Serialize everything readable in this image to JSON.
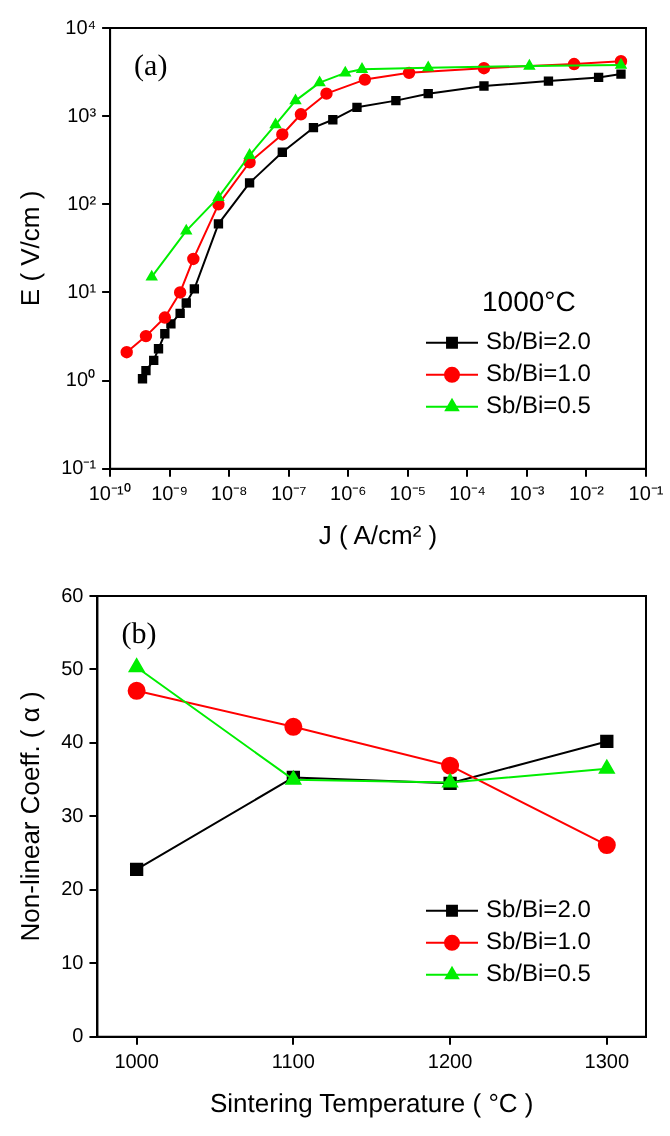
{
  "chart_data": [
    {
      "type": "line",
      "annotations": [
        "(a)"
      ],
      "xlabel": "J ( A/cm² )",
      "ylabel": "E ( V/cm )",
      "legend_title": "1000°C",
      "legend": "bottom right",
      "log": "xy",
      "grid": false,
      "xlim": [
        1e-10,
        0.1
      ],
      "xticks": [
        {
          "value": 1e-10,
          "label": "10⁻¹⁰"
        },
        {
          "value": 1e-09,
          "label": "10⁻⁹"
        },
        {
          "value": 1e-08,
          "label": "10⁻⁸"
        },
        {
          "value": 1e-07,
          "label": "10⁻⁷"
        },
        {
          "value": 1e-06,
          "label": "10⁻⁶"
        },
        {
          "value": 1e-05,
          "label": "10⁻⁵"
        },
        {
          "value": 0.0001,
          "label": "10⁻⁴"
        },
        {
          "value": 0.001,
          "label": "10⁻³"
        },
        {
          "value": 0.01,
          "label": "10⁻²"
        },
        {
          "value": 0.1,
          "label": "10⁻¹"
        }
      ],
      "ylim": [
        0.1,
        10000
      ],
      "yticks": [
        {
          "value": 0.1,
          "label": "10⁻¹"
        },
        {
          "value": 1,
          "label": "10⁰"
        },
        {
          "value": 10,
          "label": "10¹"
        },
        {
          "value": 100,
          "label": "10²"
        },
        {
          "value": 1000,
          "label": "10³"
        },
        {
          "value": 10000,
          "label": "10⁴"
        }
      ],
      "series": [
        {
          "name": "Sb/Bi=2.0",
          "color": "#000000",
          "marker": "square",
          "x": [
            3.5e-10,
            4e-10,
            5.4e-10,
            6.5e-10,
            8.3e-10,
            1.05e-09,
            1.5e-09,
            1.9e-09,
            2.6e-09,
            6.6e-09,
            2.2e-08,
            7.8e-08,
            2.6e-07,
            5.5e-07,
            1.4e-06,
            6.3e-06,
            2.2e-05,
            0.00019,
            0.0023,
            0.016,
            0.038
          ],
          "values": [
            1.05,
            1.3,
            1.7,
            2.3,
            3.4,
            4.4,
            5.8,
            7.6,
            11,
            60,
            175,
            390,
            740,
            910,
            1260,
            1500,
            1800,
            2200,
            2500,
            2750,
            3000
          ]
        },
        {
          "name": "Sb/Bi=1.0",
          "color": "#ff0000",
          "marker": "circle",
          "x": [
            1.9e-10,
            4e-10,
            8.3e-10,
            1.5e-09,
            2.5e-09,
            6.6e-09,
            2.2e-08,
            7.8e-08,
            1.6e-07,
            4.3e-07,
            1.9e-06,
            1.05e-05,
            0.00019,
            0.0062,
            0.038
          ],
          "values": [
            2.1,
            3.2,
            5.2,
            10,
            24,
            100,
            300,
            620,
            1050,
            1800,
            2600,
            3100,
            3500,
            3900,
            4200
          ]
        },
        {
          "name": "Sb/Bi=0.5",
          "color": "#00ee00",
          "marker": "triangle",
          "x": [
            5e-10,
            1.9e-09,
            6.6e-09,
            2.2e-08,
            6e-08,
            1.3e-07,
            3.3e-07,
            8.9e-07,
            1.7e-06,
            2.2e-05,
            0.0011,
            0.038
          ],
          "values": [
            15,
            50,
            120,
            360,
            800,
            1500,
            2400,
            3100,
            3400,
            3550,
            3700,
            3800
          ]
        }
      ]
    },
    {
      "type": "line",
      "annotations": [
        "(b)"
      ],
      "xlabel": "Sintering Temperature ( °C )",
      "ylabel": "Non-linear Coeff. ( α )",
      "legend": "bottom right",
      "grid": false,
      "x": [
        1000,
        1100,
        1200,
        1300
      ],
      "xlim": [
        975,
        1325
      ],
      "xticks": [
        1000,
        1100,
        1200,
        1300
      ],
      "ylim": [
        0,
        60
      ],
      "yticks": [
        0,
        10,
        20,
        30,
        40,
        50,
        60
      ],
      "series": [
        {
          "name": "Sb/Bi=2.0",
          "color": "#000000",
          "marker": "square",
          "values": [
            22.8,
            35.3,
            34.5,
            40.2
          ]
        },
        {
          "name": "Sb/Bi=1.0",
          "color": "#ff0000",
          "marker": "circle",
          "values": [
            47.1,
            42.2,
            36.9,
            26.1
          ]
        },
        {
          "name": "Sb/Bi=0.5",
          "color": "#00ee00",
          "marker": "triangle",
          "values": [
            50.3,
            35.0,
            34.6,
            36.5
          ]
        }
      ]
    }
  ]
}
